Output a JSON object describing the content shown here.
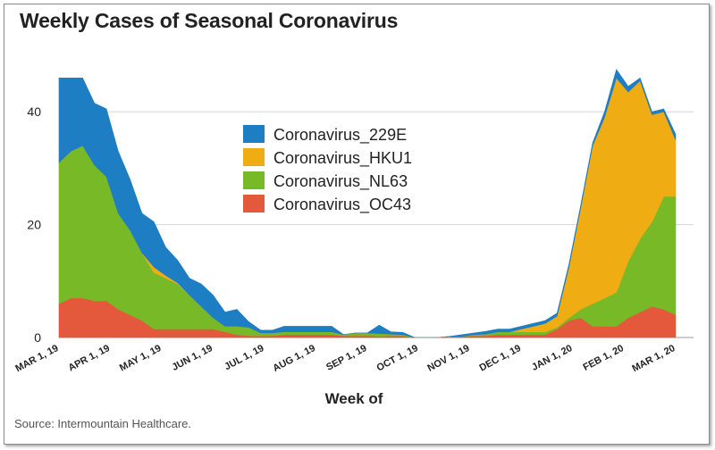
{
  "chart_data": {
    "type": "area",
    "stacked": true,
    "title": "Weekly Cases of Seasonal Coronavirus",
    "xlabel": "Week of",
    "ylabel": "",
    "ylim": [
      0,
      50
    ],
    "yticks": [
      0,
      20,
      40
    ],
    "grid": true,
    "source": "Source: Intermountain Healthcare.",
    "x_ticks": [
      "MAR 1, 19",
      "APR 1, 19",
      "MAY 1, 19",
      "JUN 1, 19",
      "JUL 1, 19",
      "AUG 1, 19",
      "SEP 1, 19",
      "OCT 1, 19",
      "NOV 1, 19",
      "DEC 1, 19",
      "JAN 1, 20",
      "FEB 1, 20",
      "MAR 1, 20"
    ],
    "weeks": 53,
    "series": [
      {
        "name": "Coronavirus_OC43",
        "color": "#e4593b",
        "values": [
          6,
          7,
          7,
          6.5,
          6.5,
          5,
          4,
          3,
          1.5,
          1.5,
          1.5,
          1.5,
          1.5,
          1.5,
          1,
          0.5,
          0.3,
          0.3,
          0.3,
          0.5,
          0.5,
          0.5,
          0.5,
          0.5,
          0.3,
          0.3,
          0.3,
          0.2,
          0.3,
          0.3,
          0,
          0,
          0,
          0.2,
          0.2,
          0.3,
          0.3,
          0.5,
          0.5,
          0.5,
          0.5,
          0.5,
          1.5,
          3,
          3.5,
          2,
          2,
          2,
          3.5,
          4.5,
          5.5,
          5,
          4
        ]
      },
      {
        "name": "Coronavirus_NL63",
        "color": "#78b928",
        "values": [
          25,
          26,
          27,
          24,
          22,
          17,
          15,
          12,
          10,
          9,
          8,
          6,
          4,
          2,
          1,
          1.5,
          1.5,
          0.5,
          0.5,
          0.5,
          0.5,
          0.5,
          0.5,
          0.5,
          0.2,
          0.5,
          0.5,
          0.5,
          0.3,
          0.2,
          0,
          0,
          0,
          0,
          0,
          0.2,
          0.3,
          0.5,
          0.5,
          0.5,
          0.5,
          0.5,
          0.3,
          0.5,
          1.5,
          4,
          5,
          6,
          10,
          13,
          15,
          20,
          21
        ]
      },
      {
        "name": "Coronavirus_HKU1",
        "color": "#f0ac13",
        "values": [
          0,
          0,
          0,
          0,
          0,
          0,
          0,
          0,
          1,
          0.5,
          0.2,
          0,
          0,
          0,
          0,
          0,
          0,
          0,
          0,
          0,
          0,
          0,
          0,
          0,
          0,
          0,
          0,
          0,
          0,
          0,
          0,
          0,
          0,
          0,
          0,
          0,
          0,
          0,
          0,
          0.5,
          1,
          1.5,
          2,
          9,
          18,
          28,
          32,
          38,
          30,
          28,
          19,
          15,
          10
        ]
      },
      {
        "name": "Coronavirus_229E",
        "color": "#1d7ec4",
        "values": [
          15,
          13,
          12,
          11,
          12,
          11,
          9,
          7,
          8,
          5,
          4,
          3,
          4,
          4,
          2.5,
          3,
          1,
          0.5,
          0.5,
          1,
          1,
          1,
          1,
          1,
          0,
          0,
          0,
          1.5,
          0.4,
          0.4,
          0,
          0,
          0,
          0,
          0.3,
          0.3,
          0.5,
          0.5,
          0.5,
          0.5,
          0.5,
          0.5,
          0.5,
          0.5,
          0.5,
          0.5,
          1,
          1.5,
          1,
          0.5,
          0.5,
          0.5,
          1
        ]
      }
    ]
  }
}
